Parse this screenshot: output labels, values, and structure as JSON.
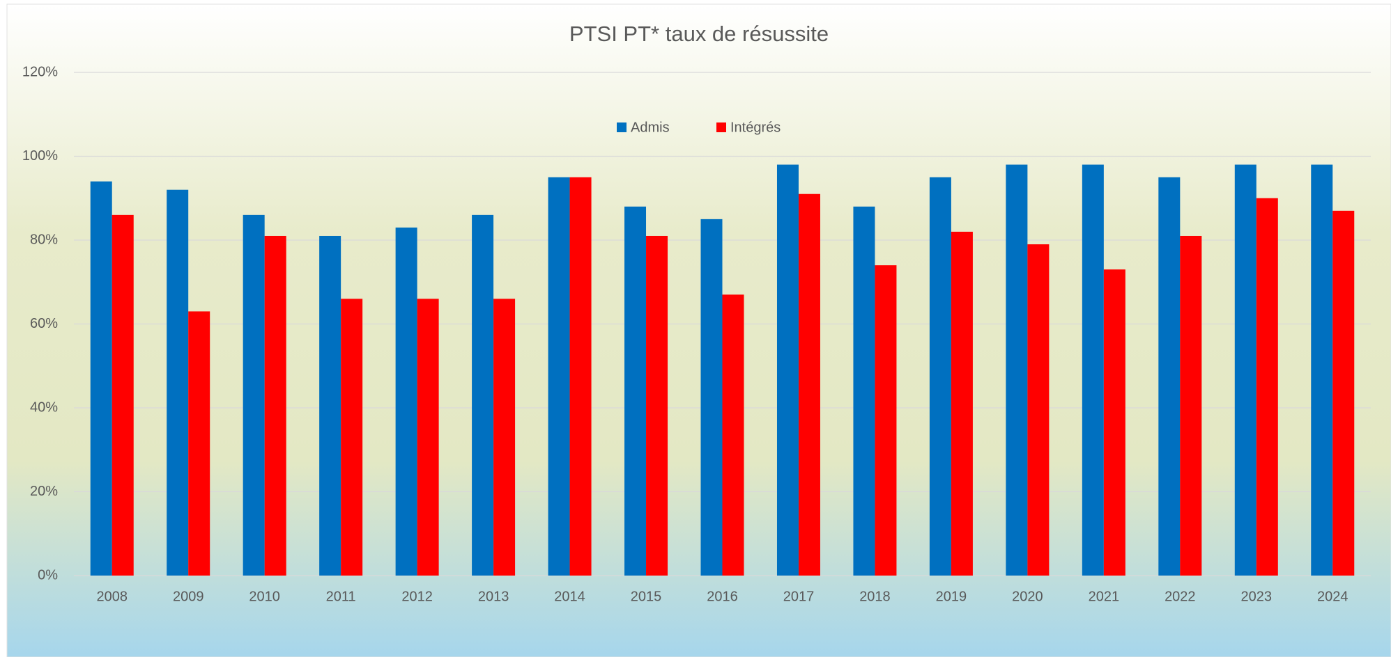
{
  "chart_data": {
    "type": "bar",
    "title": "PTSI PT* taux de résussite",
    "categories": [
      "2008",
      "2009",
      "2010",
      "2011",
      "2012",
      "2013",
      "2014",
      "2015",
      "2016",
      "2017",
      "2018",
      "2019",
      "2020",
      "2021",
      "2022",
      "2023",
      "2024"
    ],
    "series": [
      {
        "name": "Admis",
        "color": "#0070c0",
        "values": [
          94,
          92,
          86,
          81,
          83,
          86,
          95,
          88,
          85,
          98,
          88,
          95,
          98,
          98,
          95,
          98,
          98
        ]
      },
      {
        "name": "Intégrés",
        "color": "#ff0000",
        "values": [
          86,
          63,
          81,
          66,
          66,
          66,
          95,
          81,
          67,
          91,
          74,
          82,
          79,
          73,
          81,
          90,
          87
        ]
      }
    ],
    "ylim": [
      0,
      120
    ],
    "yticks": [
      {
        "value": 0,
        "label": "0%"
      },
      {
        "value": 20,
        "label": "20%"
      },
      {
        "value": 40,
        "label": "40%"
      },
      {
        "value": 60,
        "label": "60%"
      },
      {
        "value": 80,
        "label": "80%"
      },
      {
        "value": 100,
        "label": "100%"
      },
      {
        "value": 120,
        "label": "120%"
      }
    ],
    "grid": true,
    "legend": "top"
  }
}
